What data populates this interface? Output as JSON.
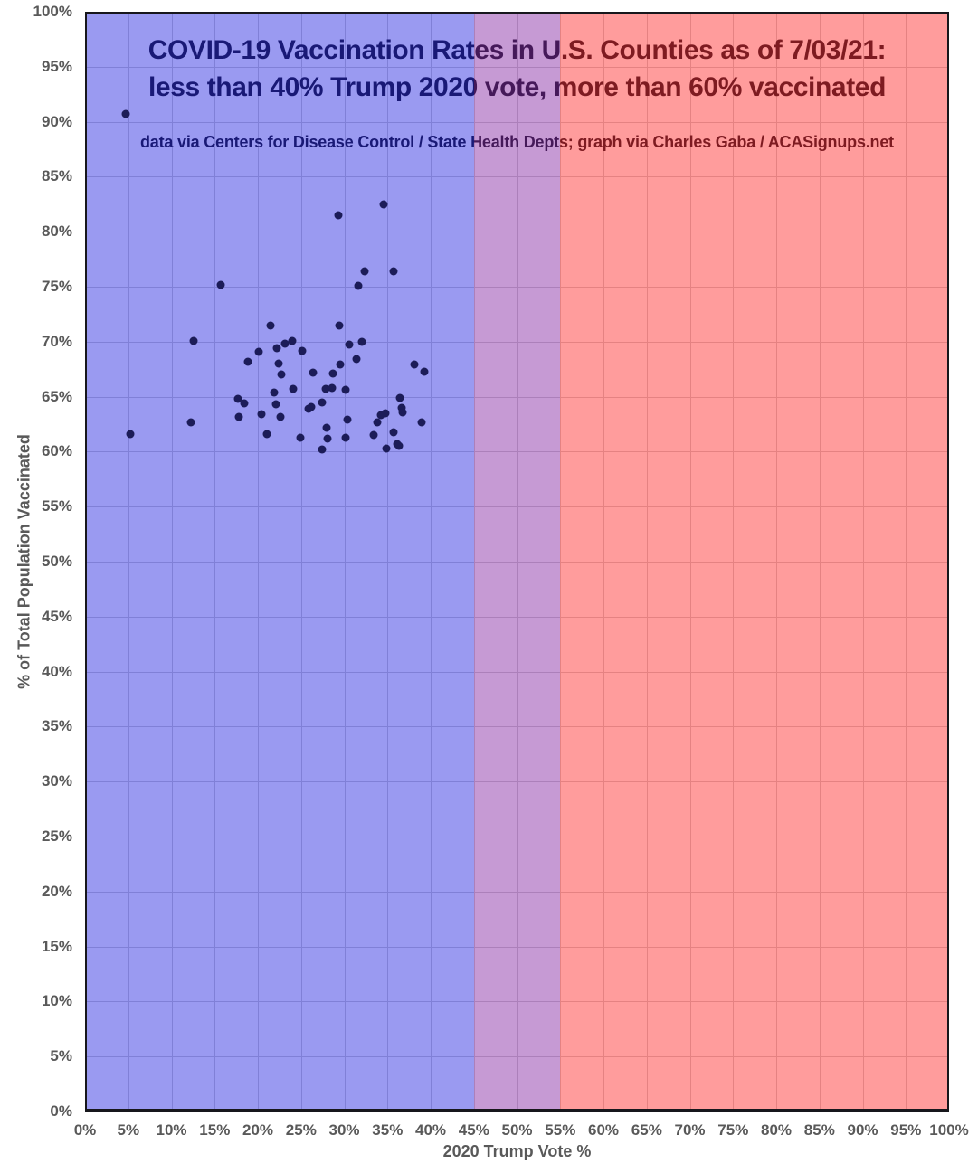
{
  "chart_data": {
    "type": "scatter",
    "title": "COVID-19 Vaccination Rates in U.S. Counties as of 7/03/21: less than 40% Trump 2020 vote, more than 60% vaccinated",
    "title_line1": "COVID-19 Vaccination Rates in U.S. Counties as of 7/03/21:",
    "title_line2": "less than 40% Trump 2020 vote, more than 60% vaccinated",
    "subtitle": "data via Centers for Disease Control / State Health Depts; graph via Charles Gaba / ACASignups.net",
    "xlabel": "2020 Trump Vote %",
    "ylabel": "% of Total Population Vaccinated",
    "xlim": [
      0,
      100
    ],
    "ylim": [
      0,
      100
    ],
    "grid": true,
    "x_tick_labels": [
      "0%",
      "5%",
      "10%",
      "15%",
      "20%",
      "25%",
      "30%",
      "35%",
      "40%",
      "45%",
      "50%",
      "55%",
      "60%",
      "65%",
      "70%",
      "75%",
      "80%",
      "85%",
      "90%",
      "95%",
      "100%"
    ],
    "y_tick_labels": [
      "0%",
      "5%",
      "10%",
      "15%",
      "20%",
      "25%",
      "30%",
      "35%",
      "40%",
      "45%",
      "50%",
      "55%",
      "60%",
      "65%",
      "70%",
      "75%",
      "80%",
      "85%",
      "90%",
      "95%",
      "100%"
    ],
    "bands": [
      {
        "name": "blue-band",
        "x_range": [
          0,
          45
        ],
        "fill_seen": "#9b9bf1",
        "overlay": "rgba(30,30,225,0.45)"
      },
      {
        "name": "purple-band",
        "x_range": [
          45,
          55
        ],
        "fill_seen": "#c69bd6",
        "overlay": "rgba(128,32,160,0.45)"
      },
      {
        "name": "red-band",
        "x_range": [
          55,
          100
        ],
        "fill_seen": "#ff9b9b",
        "overlay": "rgba(255,36,36,0.45)"
      }
    ],
    "point_color": "#1c1c58",
    "points": [
      [
        4.7,
        90.7
      ],
      [
        29.3,
        81.5
      ],
      [
        34.6,
        82.5
      ],
      [
        32.3,
        76.4
      ],
      [
        35.7,
        76.4
      ],
      [
        15.7,
        75.2
      ],
      [
        31.6,
        75.1
      ],
      [
        21.5,
        71.5
      ],
      [
        29.4,
        71.5
      ],
      [
        12.6,
        70.1
      ],
      [
        24.0,
        70.1
      ],
      [
        32.0,
        70.0
      ],
      [
        30.6,
        69.7
      ],
      [
        23.1,
        69.8
      ],
      [
        22.2,
        69.4
      ],
      [
        25.1,
        69.2
      ],
      [
        20.1,
        69.1
      ],
      [
        18.8,
        68.2
      ],
      [
        22.4,
        68.0
      ],
      [
        29.5,
        67.9
      ],
      [
        31.4,
        68.4
      ],
      [
        38.1,
        67.9
      ],
      [
        22.7,
        67.0
      ],
      [
        26.4,
        67.2
      ],
      [
        28.7,
        67.1
      ],
      [
        39.3,
        67.3
      ],
      [
        27.9,
        65.7
      ],
      [
        28.6,
        65.8
      ],
      [
        30.1,
        65.6
      ],
      [
        21.9,
        65.4
      ],
      [
        24.1,
        65.7
      ],
      [
        17.7,
        64.8
      ],
      [
        18.4,
        64.4
      ],
      [
        22.1,
        64.3
      ],
      [
        36.4,
        64.9
      ],
      [
        36.6,
        64.0
      ],
      [
        36.8,
        63.6
      ],
      [
        20.4,
        63.4
      ],
      [
        22.6,
        63.2
      ],
      [
        17.8,
        63.2
      ],
      [
        12.2,
        62.7
      ],
      [
        25.9,
        63.9
      ],
      [
        26.2,
        64.1
      ],
      [
        27.4,
        64.5
      ],
      [
        30.4,
        62.9
      ],
      [
        33.8,
        62.7
      ],
      [
        34.2,
        63.3
      ],
      [
        34.8,
        63.5
      ],
      [
        39.0,
        62.7
      ],
      [
        28.0,
        62.2
      ],
      [
        21.0,
        61.6
      ],
      [
        24.9,
        61.3
      ],
      [
        28.1,
        61.2
      ],
      [
        30.2,
        61.3
      ],
      [
        33.4,
        61.5
      ],
      [
        35.7,
        61.8
      ],
      [
        36.1,
        60.7
      ],
      [
        36.3,
        60.5
      ],
      [
        27.4,
        60.2
      ],
      [
        34.9,
        60.3
      ],
      [
        5.2,
        61.6
      ]
    ]
  }
}
